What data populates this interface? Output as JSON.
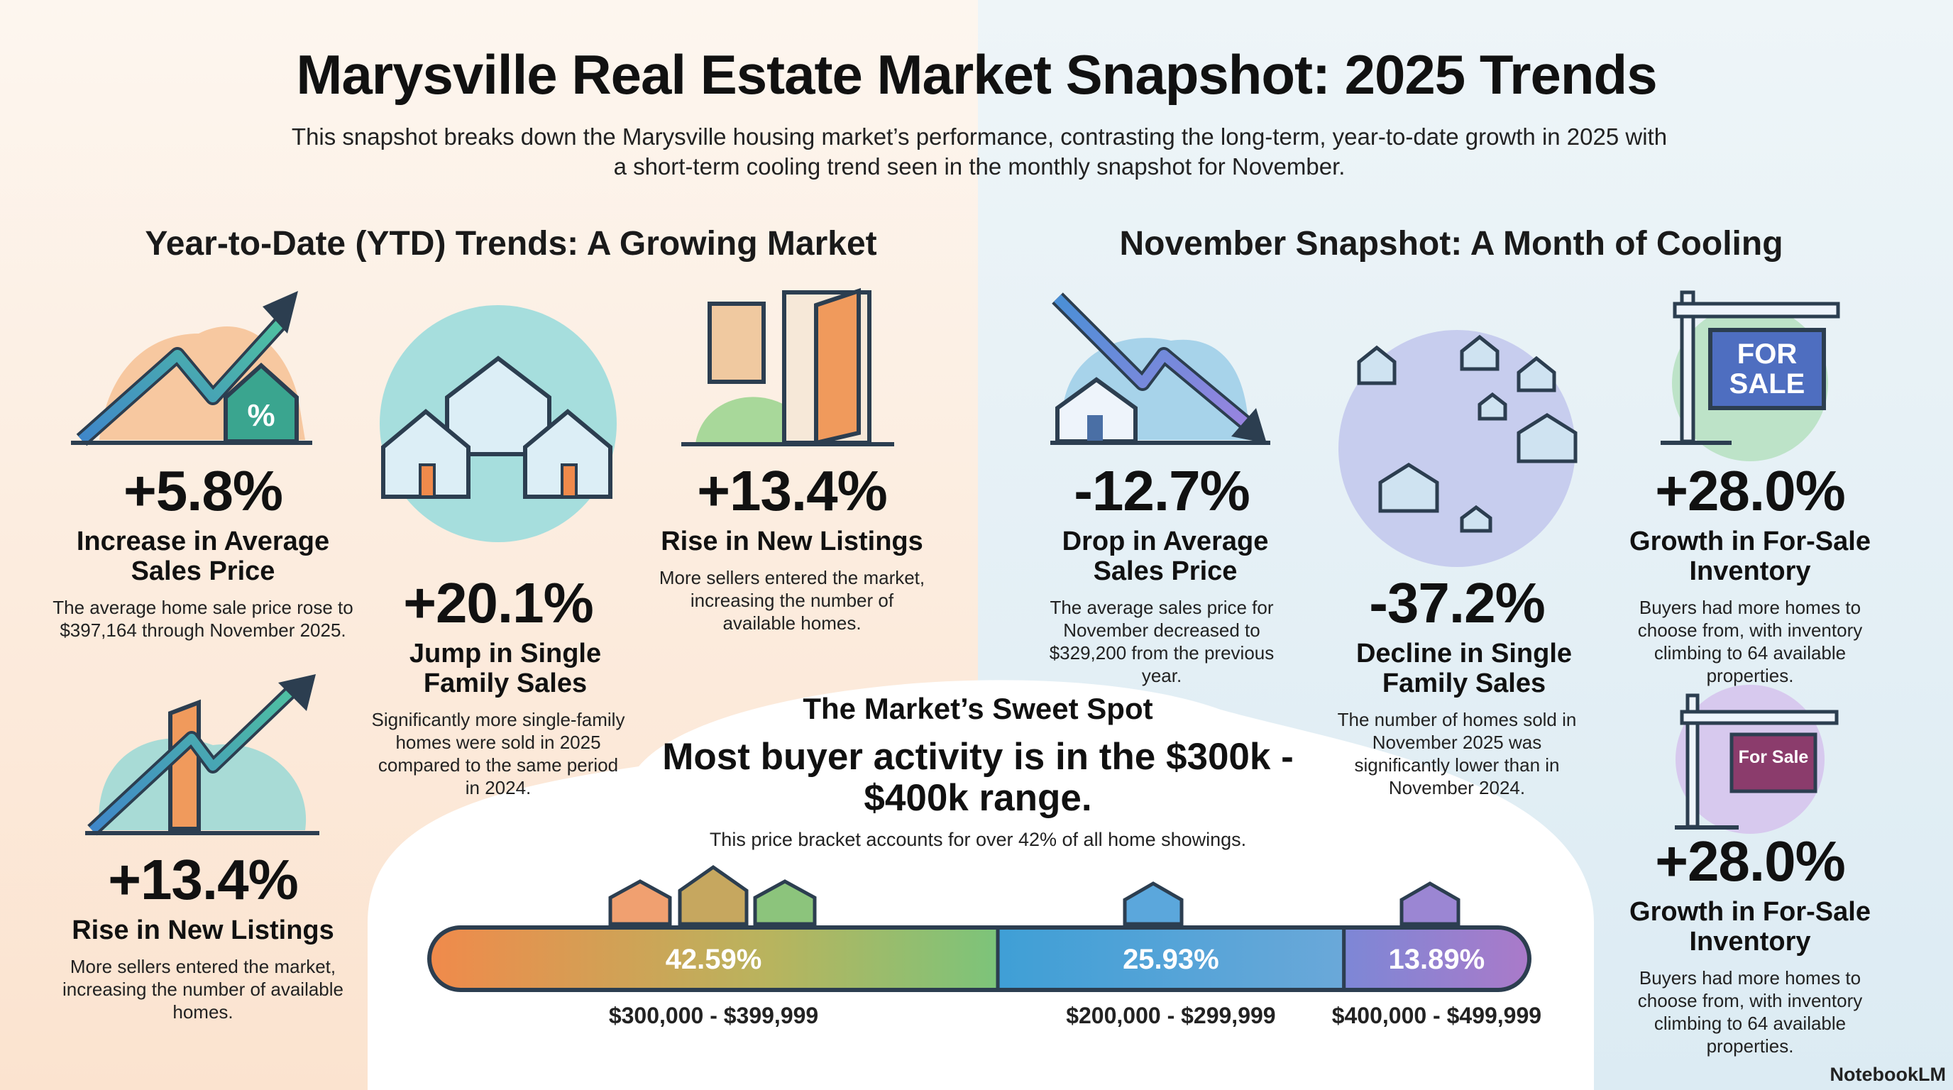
{
  "title": "Marysville Real Estate Market Snapshot: 2025 Trends",
  "subtitle": "This snapshot breaks down the Marysville housing market’s performance, contrasting the long-term, year-to-date growth in 2025 with a short-term cooling trend seen in the monthly snapshot for November.",
  "ytd": {
    "heading": "Year-to-Date (YTD) Trends: A Growing Market",
    "cards": [
      {
        "stat": "+5.8%",
        "label": "Increase in Average Sales Price",
        "text": "The average home sale price rose to $397,164 through November 2025."
      },
      {
        "stat": "+20.1%",
        "label": "Jump in Single Family Sales",
        "text": "Significantly more single-family homes were sold in 2025 compared to the same period in 2024."
      },
      {
        "stat": "+13.4%",
        "label": "Rise in New Listings",
        "text": "More sellers entered the market, increasing the number of available homes."
      },
      {
        "stat": "+13.4%",
        "label": "Rise in New Listings",
        "text": "More sellers entered the market, increasing the number of available homes."
      }
    ]
  },
  "november": {
    "heading": "November Snapshot: A Month of Cooling",
    "cards": [
      {
        "stat": "-12.7%",
        "label": "Drop in Average Sales Price",
        "text": "The average sales price for November decreased to $329,200 from the previous year."
      },
      {
        "stat": "-37.2%",
        "label": "Decline in Single Family Sales",
        "text": "The number of homes sold in November 2025 was significantly lower than in November 2024."
      },
      {
        "stat": "+28.0%",
        "label": "Growth in For-Sale Inventory",
        "text": "Buyers had more homes to choose from, with inventory climbing to 64 available properties."
      },
      {
        "stat": "+28.0%",
        "label": "Growth in For-Sale Inventory",
        "text": "Buyers had more homes to choose from, with inventory climbing to 64 available properties."
      }
    ],
    "signs": [
      "FOR SALE",
      "For Sale"
    ]
  },
  "sweet_spot": {
    "heading": "The Market’s Sweet Spot",
    "headline": "Most buyer activity is in the $300k - $400k range.",
    "note": "This price bracket accounts for over 42% of all home showings.",
    "segments": [
      {
        "value": 42.59,
        "value_label": "42.59%",
        "range": "$300,000 - $399,999"
      },
      {
        "value": 25.93,
        "value_label": "25.93%",
        "range": "$200,000 - $299,999"
      },
      {
        "value": 13.89,
        "value_label": "13.89%",
        "range": "$400,000 - $499,999"
      }
    ]
  },
  "brand": "NotebookLM"
}
